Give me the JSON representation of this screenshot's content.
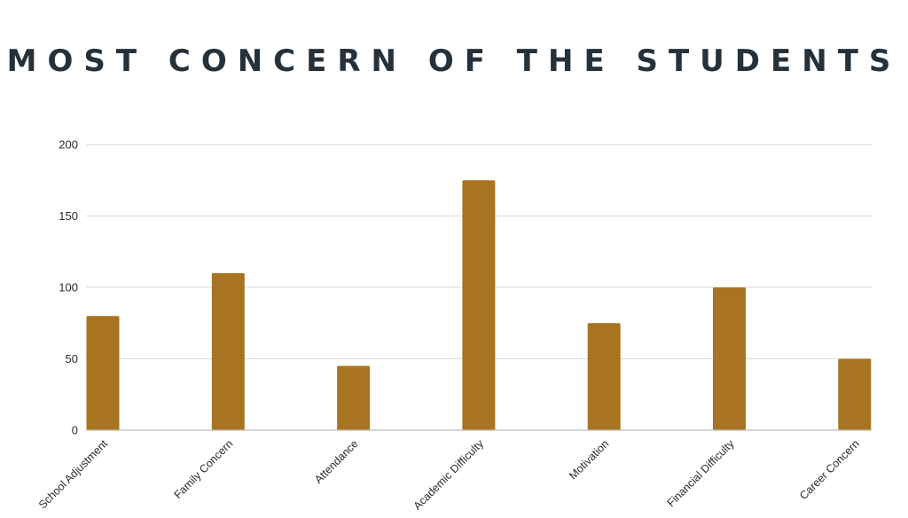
{
  "chart_data": {
    "type": "bar",
    "title": "MOST CONCERN OF THE STUDENTS",
    "xlabel": "",
    "ylabel": "",
    "categories": [
      "School Adjustment",
      "Family Concern",
      "Attendance",
      "Academic Difficulty",
      "Motivation",
      "Financial Difficulty",
      "Career Concern"
    ],
    "values": [
      80,
      110,
      45,
      175,
      75,
      100,
      50
    ],
    "ylim": [
      0,
      200
    ],
    "yticks": [
      0,
      50,
      100,
      150,
      200
    ],
    "grid": true,
    "legend": "none",
    "colors": {
      "bar": "#a87421",
      "grid": "#d9d9d9",
      "axis": "#bdbdbd",
      "title": "#25313b"
    }
  }
}
